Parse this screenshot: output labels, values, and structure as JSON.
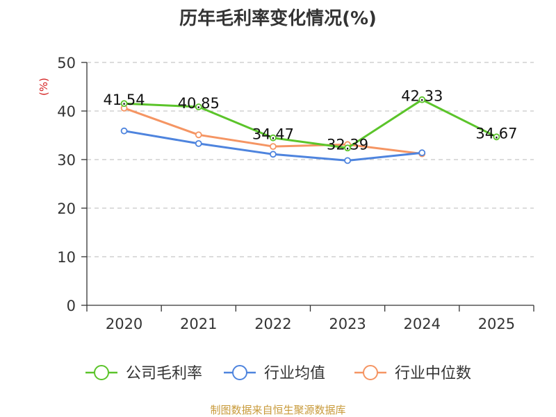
{
  "chart_data": {
    "type": "line",
    "title": "历年毛利率变化情况(%)",
    "ylabel": "(%)",
    "xlabel": "",
    "ylim": [
      0,
      50
    ],
    "yticks": [
      "0",
      "10",
      "20",
      "30",
      "40",
      "50"
    ],
    "categories": [
      "2020",
      "2021",
      "2022",
      "2023",
      "2024",
      "2025"
    ],
    "grid": true,
    "legend_position": "bottom",
    "series": [
      {
        "name": "公司毛利率",
        "color": "#5bc42a",
        "values": [
          41.54,
          40.85,
          34.47,
          32.39,
          42.33,
          34.67
        ],
        "labels": [
          "41.54",
          "40.85",
          "34.47",
          "32.39",
          "42.33",
          "34.67"
        ]
      },
      {
        "name": "行业均值",
        "color": "#4e84de",
        "values": [
          35.9,
          33.3,
          31.1,
          29.8,
          31.4,
          null
        ]
      },
      {
        "name": "行业中位数",
        "color": "#f59563",
        "values": [
          40.6,
          35.1,
          32.7,
          33.1,
          31.2,
          null
        ]
      }
    ]
  },
  "source": "制图数据来自恒生聚源数据库"
}
